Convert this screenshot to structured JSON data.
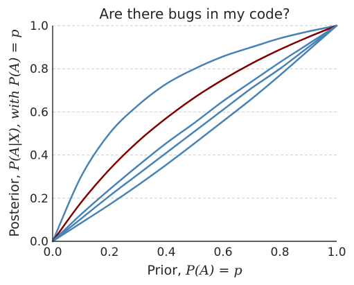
{
  "chart_data": {
    "type": "line",
    "title": "Are there bugs in my code?",
    "xlabel_prefix": "Prior, ",
    "xlabel_math": "P(A) = p",
    "ylabel_prefix": "Posterior, ",
    "ylabel_math": "P(A|X), with P(A) = p",
    "xlim": [
      0,
      1
    ],
    "ylim": [
      0,
      1
    ],
    "grid": "horizontal dashed",
    "x_ticks": [
      "0.0",
      "0.2",
      "0.4",
      "0.6",
      "0.8",
      "1.0"
    ],
    "y_ticks": [
      "0.0",
      "0.2",
      "0.4",
      "0.6",
      "0.8",
      "1.0"
    ],
    "x": [
      0.0,
      0.1,
      0.2,
      0.3,
      0.4,
      0.5,
      0.6,
      0.7,
      0.8,
      0.9,
      1.0
    ],
    "series": [
      {
        "color": "#4682b4",
        "values": [
          0.0,
          0.3,
          0.5,
          0.63,
          0.73,
          0.8,
          0.857,
          0.9,
          0.941,
          0.973,
          1.0
        ]
      },
      {
        "color": "#7f0000",
        "values": [
          0.0,
          0.18,
          0.333,
          0.462,
          0.571,
          0.667,
          0.75,
          0.824,
          0.889,
          0.947,
          1.0
        ]
      },
      {
        "color": "#4682b4",
        "values": [
          0.0,
          0.125,
          0.24,
          0.35,
          0.455,
          0.55,
          0.65,
          0.74,
          0.83,
          0.915,
          1.0
        ]
      },
      {
        "color": "#4682b4",
        "values": [
          0.0,
          0.105,
          0.21,
          0.31,
          0.41,
          0.51,
          0.61,
          0.71,
          0.8,
          0.9,
          1.0
        ]
      },
      {
        "color": "#4682b4",
        "values": [
          0.0,
          0.085,
          0.17,
          0.26,
          0.355,
          0.455,
          0.557,
          0.66,
          0.77,
          0.885,
          1.0
        ]
      }
    ]
  }
}
